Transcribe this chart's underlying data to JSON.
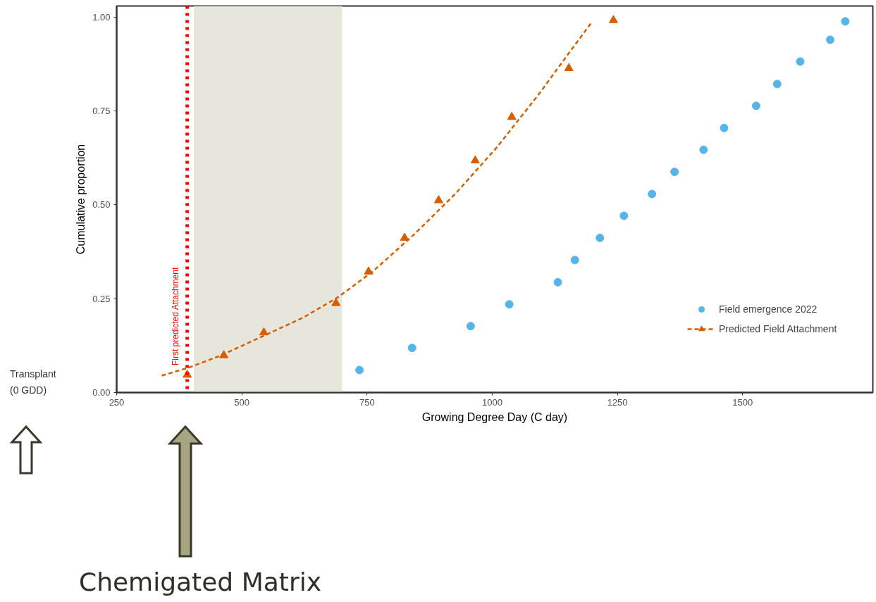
{
  "chart_data": {
    "type": "scatter",
    "xlabel": "Growing Degree Day (C day)",
    "ylabel": "Cumulative proportion",
    "xlim": [
      250,
      1760
    ],
    "ylim": [
      0,
      1.03
    ],
    "xticks": [
      250,
      500,
      750,
      1000,
      1250,
      1500
    ],
    "yticks": [
      {
        "value": 0,
        "label": "0.00"
      },
      {
        "value": 0.25,
        "label": "0.25"
      },
      {
        "value": 0.5,
        "label": "0.50"
      },
      {
        "value": 0.75,
        "label": "0.75"
      },
      {
        "value": 1,
        "label": "1.00"
      }
    ],
    "grid": false,
    "legend": "right",
    "series": [
      {
        "name": "Field emergence 2022",
        "marker": "circle",
        "color": "#56b4e9",
        "x": [
          735,
          840,
          957,
          1034,
          1131,
          1165,
          1215,
          1263,
          1319,
          1364,
          1422,
          1463,
          1527,
          1569,
          1615,
          1675,
          1705
        ],
        "values": [
          0.06,
          0.119,
          0.177,
          0.235,
          0.294,
          0.353,
          0.412,
          0.471,
          0.529,
          0.588,
          0.647,
          0.705,
          0.764,
          0.822,
          0.882,
          0.94,
          0.989
        ]
      },
      {
        "name": "Predicted Field Attachment",
        "marker": "triangle",
        "color": "#d55e00",
        "x": [
          391,
          464,
          544,
          688,
          753,
          825,
          893,
          966,
          1039,
          1153,
          1242
        ],
        "values": [
          0.047,
          0.099,
          0.16,
          0.238,
          0.322,
          0.412,
          0.512,
          0.618,
          0.734,
          0.864,
          0.992
        ]
      },
      {
        "type": "line",
        "line_style": "dashed",
        "color": "#d55e00",
        "x": [
          340,
          393,
          457,
          540,
          623,
          692,
          761,
          843,
          926,
          1009,
          1092,
          1160,
          1200
        ],
        "values": [
          0.045,
          0.066,
          0.098,
          0.149,
          0.2,
          0.254,
          0.322,
          0.42,
          0.529,
          0.653,
          0.793,
          0.917,
          0.989
        ]
      }
    ],
    "ref_lines": [
      {
        "axis": "x",
        "value": 391,
        "label": "First predicted Attachment",
        "color": "#ff0000",
        "line_style": "dotted"
      }
    ],
    "bands": [
      {
        "axis": "x",
        "from": 404,
        "to": 700,
        "color": "#e7e6dc"
      }
    ],
    "annotations": [
      "Transplant",
      "(0 GDD)",
      "Chemigated Matrix"
    ]
  }
}
